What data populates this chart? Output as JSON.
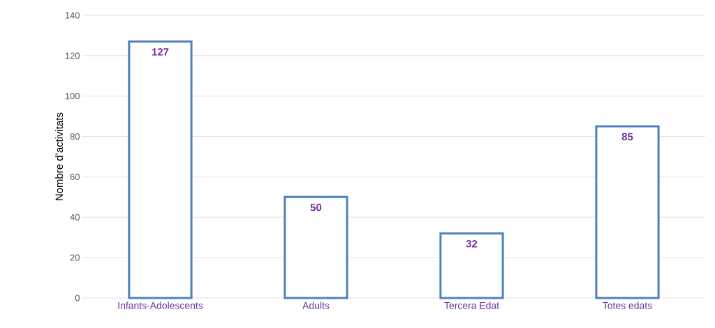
{
  "chart_data": {
    "type": "bar",
    "ylabel": "Nombre d’activitats",
    "categories": [
      "Infants-Adolescents",
      "Adults",
      "Tercera Edat",
      "Totes edats"
    ],
    "values": [
      127,
      50,
      32,
      85
    ],
    "color": "#4f81bd",
    "ylim": [
      0,
      140
    ],
    "yticks": [
      0,
      20,
      40,
      60,
      80,
      100,
      120,
      140
    ],
    "grid": "y",
    "data_labels": true
  }
}
